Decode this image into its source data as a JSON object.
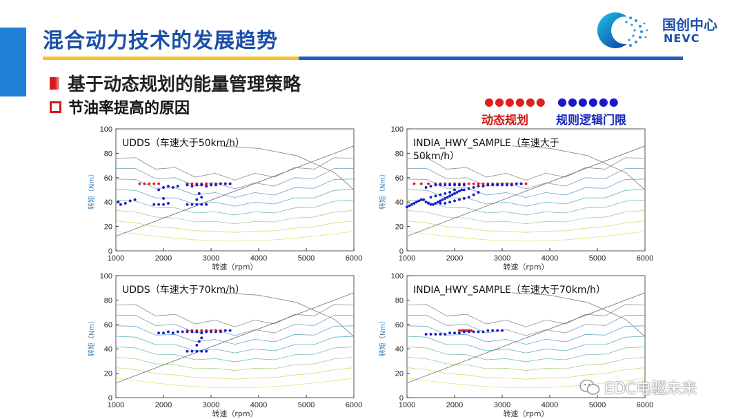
{
  "header": {
    "title": "混合动力技术的发展趋势",
    "logo": {
      "cn": "国创中心",
      "en": "NEVC"
    }
  },
  "bullets": {
    "level1": "基于动态规划的能量管理策略",
    "level2": "节油率提高的原因"
  },
  "legend": {
    "items": [
      {
        "label": "动态规划",
        "color": "#e02020",
        "dots": "●●●●●●"
      },
      {
        "label": "规则逻辑门限",
        "color": "#1a1acc",
        "dots": "●●●●●●"
      }
    ]
  },
  "watermark": "EDC电驱未来",
  "chart_data": [
    {
      "type": "scatter",
      "annotation": [
        "UDDS（车速大于50km/h）"
      ],
      "xlabel": "转速（rpm）",
      "ylabel": "转矩（Nm）",
      "xlim": [
        1000,
        6000
      ],
      "ylim": [
        0,
        100
      ],
      "xticks": [
        1000,
        2000,
        3000,
        4000,
        5000,
        6000
      ],
      "yticks": [
        0,
        20,
        40,
        60,
        80,
        100
      ],
      "series": [
        {
          "color": "#e02020",
          "points": [
            [
              1500,
              55
            ],
            [
              1600,
              55
            ],
            [
              1700,
              55
            ],
            [
              1800,
              55
            ],
            [
              1900,
              55
            ],
            [
              2500,
              55
            ],
            [
              2600,
              55
            ],
            [
              2700,
              55
            ],
            [
              2800,
              55
            ],
            [
              2900,
              55
            ],
            [
              3000,
              55
            ],
            [
              3100,
              55
            ],
            [
              3200,
              55
            ],
            [
              3300,
              55
            ],
            [
              3400,
              55
            ]
          ]
        },
        {
          "color": "#1a1acc",
          "points": [
            [
              1050,
              40
            ],
            [
              1100,
              38
            ],
            [
              1200,
              39
            ],
            [
              1300,
              41
            ],
            [
              1400,
              42
            ],
            [
              1800,
              38
            ],
            [
              1900,
              38
            ],
            [
              2000,
              38
            ],
            [
              2100,
              39
            ],
            [
              2000,
              43
            ],
            [
              1900,
              50
            ],
            [
              2000,
              52
            ],
            [
              2100,
              53
            ],
            [
              2200,
              52
            ],
            [
              2300,
              53
            ],
            [
              2500,
              54
            ],
            [
              2600,
              53
            ],
            [
              2700,
              54
            ],
            [
              2800,
              54
            ],
            [
              2900,
              53
            ],
            [
              3000,
              54
            ],
            [
              3100,
              54
            ],
            [
              3200,
              55
            ],
            [
              3300,
              55
            ],
            [
              3400,
              55
            ],
            [
              2500,
              38
            ],
            [
              2600,
              38
            ],
            [
              2700,
              38
            ],
            [
              2800,
              38
            ],
            [
              2900,
              38
            ],
            [
              2700,
              42
            ],
            [
              2800,
              44
            ],
            [
              2750,
              47
            ]
          ]
        }
      ]
    },
    {
      "type": "scatter",
      "annotation": [
        "INDIA_HWY_SAMPLE（车速大于",
        "50km/h）"
      ],
      "xlabel": "转速（rpm）",
      "ylabel": "转矩（Nm）",
      "xlim": [
        1000,
        6000
      ],
      "ylim": [
        0,
        100
      ],
      "xticks": [
        1000,
        2000,
        3000,
        4000,
        5000,
        6000
      ],
      "yticks": [
        0,
        20,
        40,
        60,
        80,
        100
      ],
      "series": [
        {
          "color": "#e02020",
          "points": [
            [
              1150,
              55
            ],
            [
              1300,
              55
            ],
            [
              1450,
              55
            ],
            [
              1600,
              55
            ],
            [
              1700,
              55
            ],
            [
              1800,
              55
            ],
            [
              1900,
              55
            ],
            [
              2000,
              55
            ],
            [
              2100,
              55
            ],
            [
              2200,
              55
            ],
            [
              2300,
              55
            ],
            [
              2400,
              55
            ],
            [
              2500,
              55
            ],
            [
              2600,
              55
            ],
            [
              2700,
              55
            ],
            [
              2800,
              55
            ],
            [
              2900,
              55
            ],
            [
              3000,
              55
            ],
            [
              3100,
              55
            ],
            [
              3200,
              55
            ],
            [
              3300,
              55
            ],
            [
              3400,
              55
            ],
            [
              3500,
              55
            ]
          ]
        },
        {
          "color": "#1a1acc",
          "points": [
            [
              1000,
              36
            ],
            [
              1050,
              37
            ],
            [
              1100,
              38
            ],
            [
              1150,
              39
            ],
            [
              1200,
              40
            ],
            [
              1250,
              41
            ],
            [
              1300,
              42
            ],
            [
              1350,
              42
            ],
            [
              1400,
              40
            ],
            [
              1450,
              39
            ],
            [
              1500,
              38
            ],
            [
              1550,
              38
            ],
            [
              1600,
              39
            ],
            [
              1650,
              40
            ],
            [
              1700,
              41
            ],
            [
              1750,
              42
            ],
            [
              1800,
              43
            ],
            [
              1850,
              44
            ],
            [
              1900,
              45
            ],
            [
              1950,
              46
            ],
            [
              2000,
              47
            ],
            [
              2050,
              48
            ],
            [
              2100,
              49
            ],
            [
              2150,
              50
            ],
            [
              2200,
              50
            ],
            [
              2300,
              51
            ],
            [
              2400,
              52
            ],
            [
              2500,
              53
            ],
            [
              2600,
              53
            ],
            [
              2700,
              54
            ],
            [
              2800,
              54
            ],
            [
              2900,
              54
            ],
            [
              3000,
              54
            ],
            [
              3100,
              54
            ],
            [
              3200,
              54
            ],
            [
              3300,
              55
            ],
            [
              3400,
              55
            ],
            [
              1500,
              44
            ],
            [
              1600,
              45
            ],
            [
              1700,
              46
            ],
            [
              1800,
              47
            ],
            [
              1900,
              48
            ],
            [
              2000,
              50
            ],
            [
              1400,
              52
            ],
            [
              1500,
              53
            ],
            [
              1600,
              54
            ],
            [
              1700,
              54
            ],
            [
              1800,
              54
            ],
            [
              1900,
              54
            ],
            [
              2000,
              54
            ],
            [
              2100,
              54
            ],
            [
              2200,
              54
            ],
            [
              1700,
              39
            ],
            [
              1800,
              39
            ],
            [
              1900,
              40
            ],
            [
              2000,
              41
            ],
            [
              2100,
              42
            ],
            [
              2200,
              43
            ],
            [
              2300,
              44
            ],
            [
              2400,
              46
            ],
            [
              2500,
              48
            ]
          ]
        }
      ]
    },
    {
      "type": "scatter",
      "annotation": [
        "UDDS（车速大于70km/h）"
      ],
      "xlabel": "转速（rpm）",
      "ylabel": "转矩（Nm）",
      "xlim": [
        1000,
        6000
      ],
      "ylim": [
        0,
        100
      ],
      "xticks": [
        1000,
        2000,
        3000,
        4000,
        5000,
        6000
      ],
      "yticks": [
        0,
        20,
        40,
        60,
        80,
        100
      ],
      "series": [
        {
          "color": "#e02020",
          "points": [
            [
              2500,
              55
            ],
            [
              2600,
              55
            ],
            [
              2700,
              55
            ],
            [
              2800,
              55
            ],
            [
              2900,
              55
            ],
            [
              3000,
              55
            ],
            [
              3100,
              55
            ],
            [
              3200,
              55
            ],
            [
              3300,
              55
            ]
          ]
        },
        {
          "color": "#1a1acc",
          "points": [
            [
              1900,
              53
            ],
            [
              2000,
              53
            ],
            [
              2100,
              54
            ],
            [
              2200,
              53
            ],
            [
              2300,
              54
            ],
            [
              2400,
              54
            ],
            [
              2500,
              54
            ],
            [
              2600,
              54
            ],
            [
              2700,
              54
            ],
            [
              2800,
              53
            ],
            [
              2900,
              54
            ],
            [
              3000,
              54
            ],
            [
              3100,
              54
            ],
            [
              3200,
              54
            ],
            [
              3300,
              55
            ],
            [
              3400,
              55
            ],
            [
              2500,
              38
            ],
            [
              2600,
              38
            ],
            [
              2700,
              38
            ],
            [
              2800,
              38
            ],
            [
              2900,
              38
            ],
            [
              2700,
              43
            ],
            [
              2750,
              46
            ],
            [
              2800,
              49
            ]
          ]
        }
      ]
    },
    {
      "type": "scatter",
      "annotation": [
        "INDIA_HWY_SAMPLE（车速大于70km/h）"
      ],
      "xlabel": "转速（rpm）",
      "ylabel": "转矩（Nm）",
      "xlim": [
        1000,
        6000
      ],
      "ylim": [
        0,
        100
      ],
      "xticks": [
        1000,
        2000,
        3000,
        4000,
        5000,
        6000
      ],
      "yticks": [
        0,
        20,
        40,
        60,
        80,
        100
      ],
      "series": [
        {
          "color": "#e02020",
          "points": [
            [
              2100,
              55
            ],
            [
              2150,
              55
            ],
            [
              2200,
              55
            ],
            [
              2250,
              55
            ],
            [
              2300,
              55
            ],
            [
              2350,
              55
            ]
          ]
        },
        {
          "color": "#1a1acc",
          "points": [
            [
              1400,
              52
            ],
            [
              1500,
              52
            ],
            [
              1600,
              52
            ],
            [
              1700,
              52
            ],
            [
              1800,
              52
            ],
            [
              1900,
              53
            ],
            [
              2000,
              53
            ],
            [
              2100,
              53
            ],
            [
              2200,
              54
            ],
            [
              2300,
              54
            ],
            [
              2400,
              54
            ],
            [
              2500,
              54
            ],
            [
              2600,
              54
            ],
            [
              2700,
              55
            ],
            [
              2800,
              55
            ],
            [
              2900,
              55
            ],
            [
              3000,
              55
            ]
          ]
        }
      ]
    }
  ]
}
